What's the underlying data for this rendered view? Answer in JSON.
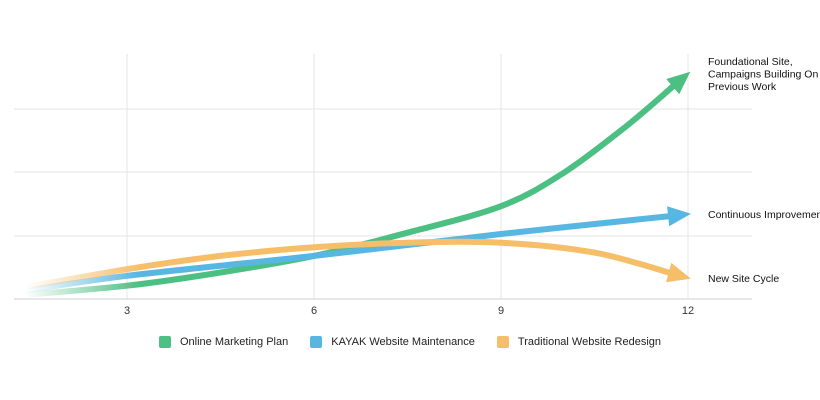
{
  "chart_data": {
    "type": "line",
    "title": "",
    "xlabel": "",
    "ylabel": "",
    "x_ticks": [
      3,
      6,
      9,
      12
    ],
    "xlim": [
      1.2,
      12.9
    ],
    "ylim": [
      0,
      4
    ],
    "grid": true,
    "legend_position": "bottom",
    "series": [
      {
        "name": "Online Marketing Plan",
        "color": "#4cbf82",
        "x": [
          1.2,
          3,
          4.5,
          6,
          7.5,
          9,
          10,
          11,
          12
        ],
        "y": [
          0.05,
          0.2,
          0.4,
          0.65,
          1.0,
          1.4,
          1.9,
          2.6,
          3.4
        ],
        "annotation": "Foundational Site, Campaigns Building On Previous Work"
      },
      {
        "name": "KAYAK Website Maintenance",
        "color": "#57b6e2",
        "x": [
          1.2,
          3,
          6,
          9,
          12
        ],
        "y": [
          0.1,
          0.35,
          0.65,
          0.98,
          1.28
        ],
        "annotation": "Continuous Improvement"
      },
      {
        "name": "Traditional Website Redesign",
        "color": "#f6be69",
        "x": [
          1.2,
          3,
          4.5,
          6,
          7.5,
          9,
          10.5,
          12
        ],
        "y": [
          0.15,
          0.45,
          0.65,
          0.78,
          0.85,
          0.85,
          0.7,
          0.32
        ],
        "annotation": "New Site Cycle"
      }
    ]
  }
}
